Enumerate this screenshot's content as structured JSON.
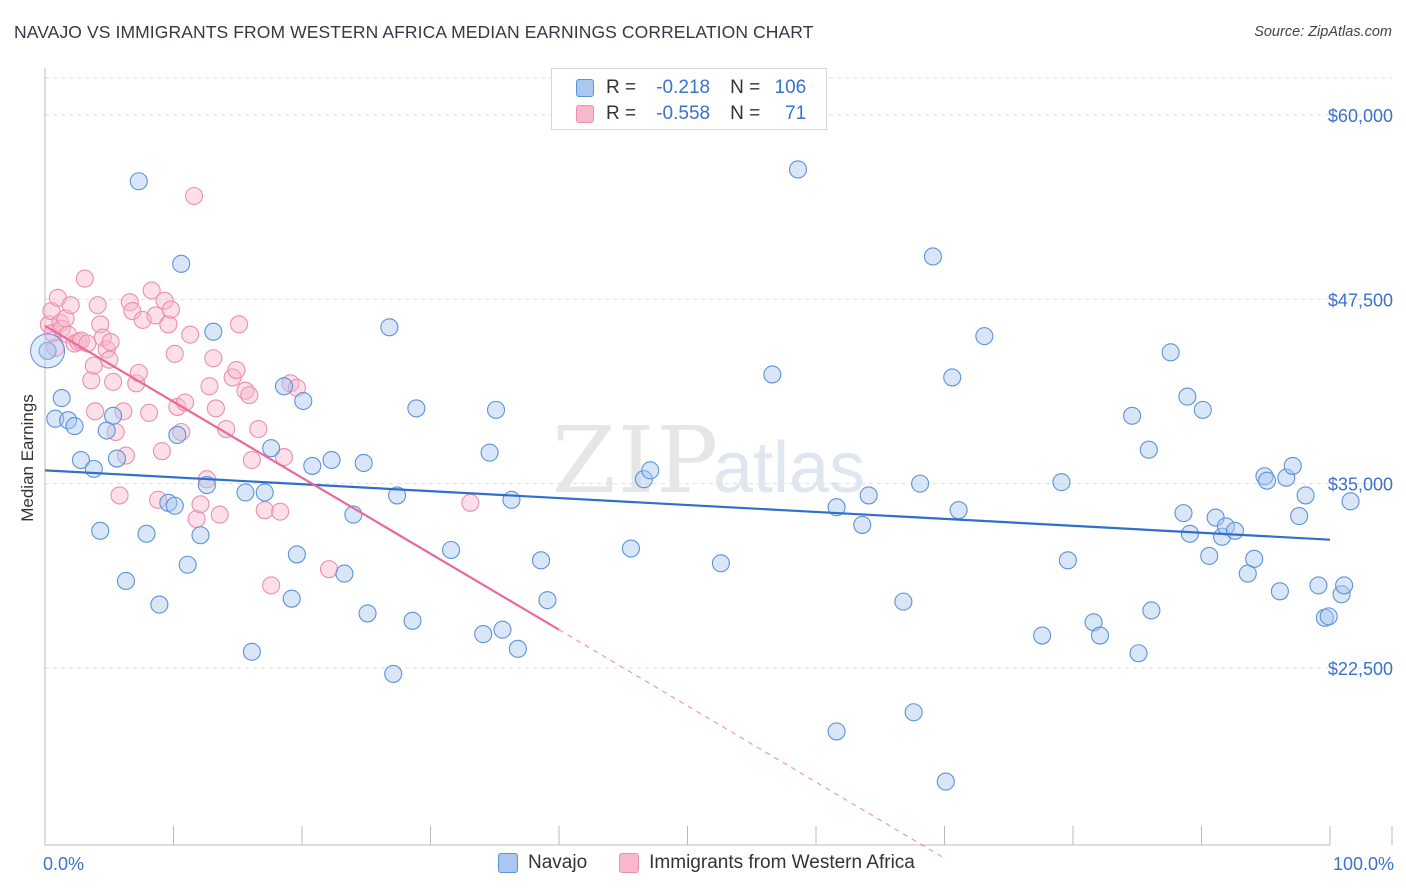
{
  "header": {
    "title": "NAVAJO VS IMMIGRANTS FROM WESTERN AFRICA MEDIAN EARNINGS CORRELATION CHART",
    "source": "Source: ZipAtlas.com"
  },
  "watermark": {
    "zip": "ZIP",
    "atlas": "atlas"
  },
  "legend_top": {
    "navajo": {
      "r_label": "R =",
      "r_value": "-0.218",
      "n_label": "N =",
      "n_value": "106"
    },
    "immigrants": {
      "r_label": "R =",
      "r_value": "-0.558",
      "n_label": "N =",
      "n_value": "71"
    }
  },
  "legend_bottom": {
    "navajo": "Navajo",
    "immigrants": "Immigrants from Western Africa"
  },
  "colors": {
    "navajo_fill": "#a8c8f0",
    "navajo_stroke": "#5b93d9",
    "navajo_line": "#2f6fce",
    "immig_fill": "#f8b8cc",
    "immig_stroke": "#ec8fac",
    "immig_line": "#e8699a",
    "grid": "#dddddd",
    "tick_label": "#3a72cc",
    "watermark": "#e4e4e4"
  },
  "chart_data": {
    "type": "scatter",
    "title": "NAVAJO VS IMMIGRANTS FROM WESTERN AFRICA MEDIAN EARNINGS CORRELATION CHART",
    "xlabel": "",
    "ylabel": "Median Earnings",
    "xlim": [
      0,
      100
    ],
    "ylim": [
      10500,
      62500
    ],
    "x_tick_labels": [
      {
        "value": 0,
        "label": "0.0%"
      },
      {
        "value": 100,
        "label": "100.0%"
      }
    ],
    "x_minor_ticks": [
      10,
      20,
      30,
      40,
      50,
      60,
      70,
      80,
      90,
      100
    ],
    "y_ticks": [
      {
        "value": 60000,
        "label": "$60,000"
      },
      {
        "value": 47500,
        "label": "$47,500"
      },
      {
        "value": 35000,
        "label": "$35,000"
      },
      {
        "value": 22500,
        "label": "$22,500"
      }
    ],
    "grid": true,
    "legend_position": "top-center",
    "series": [
      {
        "name": "Navajo",
        "r": -0.218,
        "n": 106,
        "trend": {
          "x0": 0,
          "y0": 35900,
          "x1": 100,
          "y1": 31200
        },
        "points": [
          [
            0.2,
            44000
          ],
          [
            0.8,
            39400
          ],
          [
            1.3,
            40800
          ],
          [
            1.8,
            39300
          ],
          [
            2.3,
            38900
          ],
          [
            2.8,
            36600
          ],
          [
            3.8,
            36000
          ],
          [
            4.3,
            31800
          ],
          [
            4.8,
            38600
          ],
          [
            5.3,
            39600
          ],
          [
            5.6,
            36700
          ],
          [
            6.3,
            28400
          ],
          [
            7.3,
            55500
          ],
          [
            7.9,
            31600
          ],
          [
            8.9,
            26800
          ],
          [
            9.6,
            33700
          ],
          [
            10.1,
            33500
          ],
          [
            10.3,
            38300
          ],
          [
            10.6,
            49900
          ],
          [
            11.1,
            29500
          ],
          [
            12.1,
            31500
          ],
          [
            12.6,
            34900
          ],
          [
            13.1,
            45300
          ],
          [
            15.6,
            34400
          ],
          [
            16.1,
            23600
          ],
          [
            17.1,
            34400
          ],
          [
            17.6,
            37400
          ],
          [
            18.6,
            41600
          ],
          [
            19.2,
            27200
          ],
          [
            19.6,
            30200
          ],
          [
            20.1,
            40600
          ],
          [
            20.8,
            36200
          ],
          [
            22.3,
            36600
          ],
          [
            23.3,
            28900
          ],
          [
            24.0,
            32900
          ],
          [
            24.8,
            36400
          ],
          [
            25.1,
            26200
          ],
          [
            26.8,
            45600
          ],
          [
            27.1,
            22100
          ],
          [
            27.4,
            34200
          ],
          [
            28.6,
            25700
          ],
          [
            28.9,
            40100
          ],
          [
            31.6,
            30500
          ],
          [
            34.1,
            24800
          ],
          [
            34.6,
            37100
          ],
          [
            35.1,
            40000
          ],
          [
            35.6,
            25100
          ],
          [
            36.3,
            33900
          ],
          [
            36.8,
            23800
          ],
          [
            38.6,
            29800
          ],
          [
            39.1,
            27100
          ],
          [
            45.6,
            30600
          ],
          [
            46.6,
            35300
          ],
          [
            47.1,
            35900
          ],
          [
            52.6,
            29600
          ],
          [
            56.6,
            42400
          ],
          [
            58.6,
            56300
          ],
          [
            61.6,
            33400
          ],
          [
            61.6,
            18200
          ],
          [
            63.6,
            32200
          ],
          [
            64.1,
            34200
          ],
          [
            66.8,
            27000
          ],
          [
            67.6,
            19500
          ],
          [
            68.1,
            35000
          ],
          [
            69.1,
            50400
          ],
          [
            70.1,
            14800
          ],
          [
            70.6,
            42200
          ],
          [
            71.1,
            33200
          ],
          [
            73.1,
            45000
          ],
          [
            77.6,
            24700
          ],
          [
            79.1,
            35100
          ],
          [
            79.6,
            29800
          ],
          [
            81.6,
            25600
          ],
          [
            82.1,
            24700
          ],
          [
            84.6,
            39600
          ],
          [
            85.1,
            23500
          ],
          [
            85.9,
            37300
          ],
          [
            86.1,
            26400
          ],
          [
            87.6,
            43900
          ],
          [
            88.6,
            33000
          ],
          [
            88.9,
            40900
          ],
          [
            89.1,
            31600
          ],
          [
            90.1,
            40000
          ],
          [
            90.6,
            30100
          ],
          [
            91.1,
            32700
          ],
          [
            91.6,
            31400
          ],
          [
            91.9,
            32100
          ],
          [
            92.6,
            31800
          ],
          [
            93.6,
            28900
          ],
          [
            94.1,
            29900
          ],
          [
            94.9,
            35500
          ],
          [
            95.1,
            35200
          ],
          [
            96.1,
            27700
          ],
          [
            96.6,
            35400
          ],
          [
            97.1,
            36200
          ],
          [
            97.6,
            32800
          ],
          [
            98.1,
            34200
          ],
          [
            99.1,
            28100
          ],
          [
            99.6,
            25900
          ],
          [
            99.9,
            26000
          ],
          [
            100.9,
            27500
          ],
          [
            101.1,
            28100
          ],
          [
            101.6,
            33800
          ]
        ]
      },
      {
        "name": "Immigrants from Western Africa",
        "r": -0.558,
        "n": 71,
        "trend": {
          "x0": 0,
          "y0": 45700,
          "x1": 40,
          "y1": 25100
        },
        "trend_dashed": {
          "x0": 40,
          "y0": 25100,
          "x1": 70,
          "y1": 9600
        },
        "points": [
          [
            0.3,
            45800
          ],
          [
            0.5,
            46700
          ],
          [
            0.6,
            45200
          ],
          [
            0.8,
            44200
          ],
          [
            1.0,
            47600
          ],
          [
            1.2,
            45900
          ],
          [
            1.3,
            45500
          ],
          [
            1.6,
            46200
          ],
          [
            1.8,
            45100
          ],
          [
            2.0,
            47100
          ],
          [
            2.3,
            44500
          ],
          [
            2.6,
            44600
          ],
          [
            2.8,
            44700
          ],
          [
            3.1,
            48900
          ],
          [
            3.3,
            44500
          ],
          [
            3.6,
            42000
          ],
          [
            3.8,
            43000
          ],
          [
            3.9,
            39900
          ],
          [
            4.1,
            47100
          ],
          [
            4.3,
            45800
          ],
          [
            4.5,
            44900
          ],
          [
            4.8,
            44100
          ],
          [
            5.0,
            43400
          ],
          [
            5.1,
            44600
          ],
          [
            5.3,
            41900
          ],
          [
            5.5,
            38500
          ],
          [
            5.8,
            34200
          ],
          [
            6.1,
            39900
          ],
          [
            6.3,
            36900
          ],
          [
            6.6,
            47300
          ],
          [
            6.8,
            46700
          ],
          [
            7.1,
            41800
          ],
          [
            7.3,
            42500
          ],
          [
            7.6,
            46100
          ],
          [
            8.1,
            39800
          ],
          [
            8.3,
            48100
          ],
          [
            8.6,
            46400
          ],
          [
            8.8,
            33900
          ],
          [
            9.1,
            37200
          ],
          [
            9.3,
            47400
          ],
          [
            9.6,
            45800
          ],
          [
            9.8,
            46800
          ],
          [
            10.1,
            43800
          ],
          [
            10.3,
            40200
          ],
          [
            10.6,
            38500
          ],
          [
            10.9,
            40500
          ],
          [
            11.3,
            45100
          ],
          [
            11.6,
            54500
          ],
          [
            11.8,
            32600
          ],
          [
            12.1,
            33600
          ],
          [
            12.6,
            35300
          ],
          [
            12.8,
            41600
          ],
          [
            13.1,
            43500
          ],
          [
            13.3,
            40100
          ],
          [
            13.6,
            32900
          ],
          [
            14.1,
            38700
          ],
          [
            14.6,
            42200
          ],
          [
            14.9,
            42700
          ],
          [
            15.1,
            45800
          ],
          [
            15.6,
            41300
          ],
          [
            15.9,
            41000
          ],
          [
            16.1,
            36600
          ],
          [
            16.6,
            38700
          ],
          [
            17.1,
            33200
          ],
          [
            17.6,
            28100
          ],
          [
            18.3,
            33100
          ],
          [
            18.6,
            36800
          ],
          [
            19.1,
            41800
          ],
          [
            19.6,
            41500
          ],
          [
            22.1,
            29200
          ],
          [
            33.1,
            33700
          ]
        ]
      }
    ]
  }
}
